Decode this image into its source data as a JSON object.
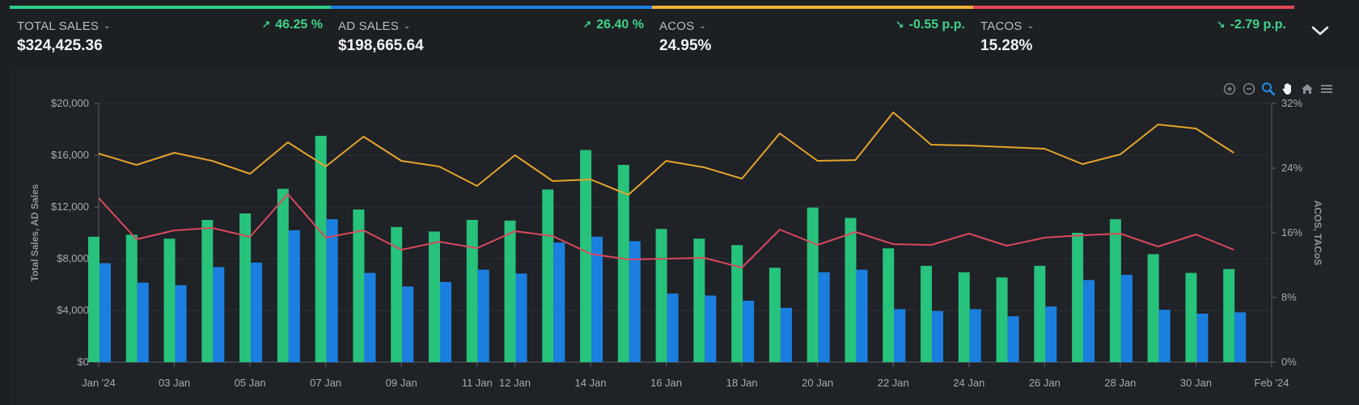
{
  "kpis": [
    {
      "id": "total-sales",
      "label": "TOTAL SALES",
      "value": "$324,425.36",
      "change": "46.25 %",
      "direction": "up",
      "stripe_color": "#2ecc8a"
    },
    {
      "id": "ad-sales",
      "label": "AD SALES",
      "value": "$198,665.64",
      "change": "26.40 %",
      "direction": "up",
      "stripe_color": "#1a7fe0"
    },
    {
      "id": "acos",
      "label": "ACOS",
      "value": "24.95%",
      "change": "-0.55 p.p.",
      "direction": "down",
      "stripe_color": "#f0b23a"
    },
    {
      "id": "tacos",
      "label": "TACOS",
      "value": "15.28%",
      "change": "-2.79 p.p.",
      "direction": "down",
      "stripe_color": "#e8465a"
    }
  ],
  "icons": {
    "collapse": "chevron-down-icon",
    "toolbar": [
      "zoom-in-icon",
      "zoom-out-icon",
      "zoom-select-icon",
      "pan-hand-icon",
      "home-reset-icon",
      "menu-icon"
    ]
  },
  "chart_data": {
    "type": "bar",
    "title": "",
    "ylabel": "Total Sales, AD Sales",
    "y2label": "ACOS, TACoS",
    "ylim": [
      0,
      20000
    ],
    "y2lim": [
      0,
      32
    ],
    "yticks": [
      "$0",
      "$4,000",
      "$8,000",
      "$12,000",
      "$16,000",
      "$20,000"
    ],
    "y2ticks": [
      "0%",
      "8%",
      "16%",
      "24%",
      "32%"
    ],
    "xticks": [
      {
        "label": "Jan '24",
        "day": 1
      },
      {
        "label": "03 Jan",
        "day": 3
      },
      {
        "label": "05 Jan",
        "day": 5
      },
      {
        "label": "07 Jan",
        "day": 7
      },
      {
        "label": "09 Jan",
        "day": 9
      },
      {
        "label": "11 Jan",
        "day": 11
      },
      {
        "label": "12 Jan",
        "day": 12
      },
      {
        "label": "14 Jan",
        "day": 14
      },
      {
        "label": "16 Jan",
        "day": 16
      },
      {
        "label": "18 Jan",
        "day": 18
      },
      {
        "label": "20 Jan",
        "day": 20
      },
      {
        "label": "22 Jan",
        "day": 22
      },
      {
        "label": "24 Jan",
        "day": 24
      },
      {
        "label": "26 Jan",
        "day": 26
      },
      {
        "label": "28 Jan",
        "day": 28
      },
      {
        "label": "30 Jan",
        "day": 30
      },
      {
        "label": "Feb '24",
        "day": 32
      }
    ],
    "x": [
      1,
      2,
      3,
      4,
      5,
      6,
      7,
      8,
      9,
      10,
      11,
      12,
      13,
      14,
      15,
      16,
      17,
      18,
      19,
      20,
      21,
      22,
      23,
      24,
      25,
      26,
      27,
      28,
      29,
      30,
      31
    ],
    "series": [
      {
        "type": "bar",
        "axis": "left",
        "color": "#27c27c",
        "values": [
          9700,
          9850,
          9550,
          11000,
          11500,
          13400,
          17500,
          11800,
          10450,
          10100,
          11000,
          10950,
          13350,
          16400,
          15250,
          10300,
          9550,
          9050,
          7300,
          11950,
          11150,
          8800,
          7450,
          6950,
          6550,
          7450,
          10000,
          11050,
          8350,
          6900,
          7200
        ]
      },
      {
        "type": "bar",
        "axis": "left",
        "color": "#1b7fe0",
        "values": [
          7650,
          6150,
          5950,
          7350,
          7700,
          10200,
          11050,
          6900,
          5850,
          6200,
          7150,
          6850,
          9250,
          9700,
          9350,
          5300,
          5150,
          4750,
          4200,
          6950,
          7150,
          4100,
          3950,
          4100,
          3550,
          4300,
          6350,
          6750,
          4050,
          3750,
          3850
        ]
      },
      {
        "type": "line",
        "axis": "right",
        "color": "#e3a42c",
        "values": [
          25.8,
          24.4,
          25.9,
          24.9,
          23.3,
          27.2,
          24.2,
          27.9,
          24.9,
          24.2,
          21.8,
          25.6,
          22.4,
          22.6,
          20.7,
          24.9,
          24.1,
          22.7,
          28.3,
          24.9,
          25.0,
          30.9,
          26.9,
          26.8,
          26.6,
          26.4,
          24.5,
          25.7,
          29.4,
          28.9,
          25.9
        ]
      },
      {
        "type": "line",
        "axis": "right",
        "color": "#d9495e",
        "values": [
          20.3,
          15.2,
          16.3,
          16.6,
          15.5,
          20.8,
          15.4,
          16.3,
          13.9,
          14.9,
          14.1,
          16.2,
          15.6,
          13.4,
          12.7,
          12.8,
          12.9,
          11.7,
          16.4,
          14.5,
          16.1,
          14.6,
          14.5,
          15.9,
          14.4,
          15.4,
          15.7,
          15.9,
          14.3,
          15.8,
          13.9
        ]
      }
    ],
    "grid": true
  }
}
